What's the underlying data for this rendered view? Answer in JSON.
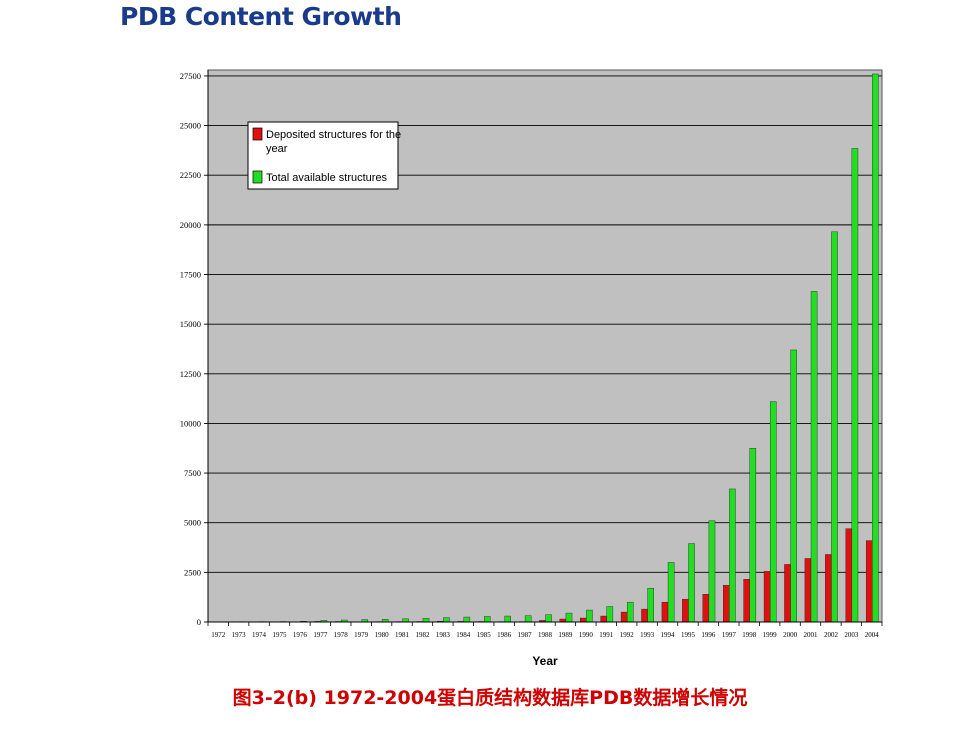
{
  "page": {
    "title": "PDB Content Growth",
    "caption": "图3-2(b) 1972-2004蛋白质结构数据库PDB数据增长情况"
  },
  "colors": {
    "deposited": "#e01010",
    "total": "#22dd22",
    "plot_bg": "#c0c0c0",
    "title": "#1a3a8c",
    "caption": "#d10000"
  },
  "chart_data": {
    "type": "bar",
    "xlabel": "Year",
    "ylabel": "",
    "ylim": [
      0,
      27500
    ],
    "yticks": [
      0,
      2500,
      5000,
      7500,
      10000,
      12500,
      15000,
      17500,
      20000,
      22500,
      25000,
      27500
    ],
    "grid": true,
    "legend_position": "top-left",
    "categories": [
      "1972",
      "1973",
      "1974",
      "1975",
      "1976",
      "1977",
      "1978",
      "1979",
      "1980",
      "1981",
      "1982",
      "1983",
      "1984",
      "1985",
      "1986",
      "1987",
      "1988",
      "1989",
      "1990",
      "1991",
      "1992",
      "1993",
      "1994",
      "1995",
      "1996",
      "1997",
      "1998",
      "1999",
      "2000",
      "2001",
      "2002",
      "2003",
      "2004"
    ],
    "series": [
      {
        "name": "Deposited structures for the year",
        "color": "#e01010",
        "values": [
          10,
          3,
          3,
          2,
          15,
          30,
          25,
          15,
          20,
          20,
          25,
          40,
          30,
          25,
          20,
          20,
          80,
          150,
          200,
          300,
          500,
          650,
          1000,
          1150,
          1400,
          1850,
          2150,
          2550,
          2900,
          3200,
          3400,
          4700,
          4100
        ]
      },
      {
        "name": "Total available structures",
        "color": "#22dd22",
        "values": [
          15,
          18,
          20,
          22,
          40,
          80,
          100,
          120,
          140,
          160,
          190,
          220,
          250,
          280,
          300,
          320,
          370,
          450,
          600,
          780,
          1000,
          1700,
          3000,
          3950,
          5100,
          6700,
          8750,
          11100,
          13700,
          16650,
          19650,
          23850,
          27600
        ]
      }
    ]
  }
}
